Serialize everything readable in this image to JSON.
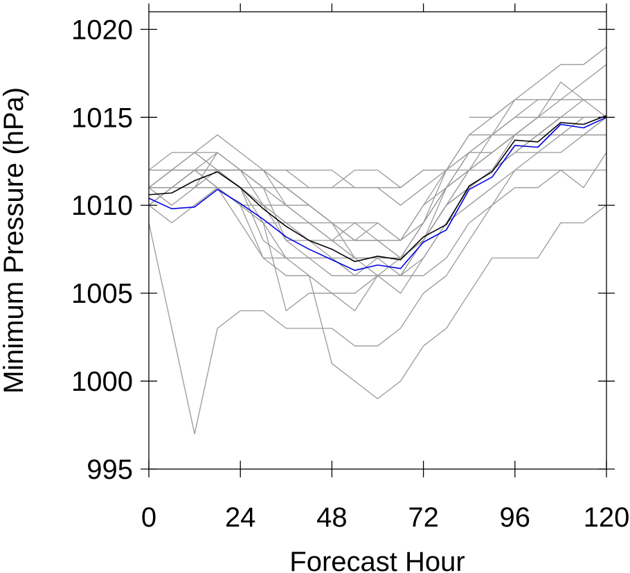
{
  "chart_data": {
    "type": "line",
    "title": "",
    "xlabel": "Forecast Hour",
    "ylabel": "Minimum Pressure (hPa)",
    "xlim": [
      0,
      120
    ],
    "ylim": [
      995,
      1021
    ],
    "xticks": [
      0,
      24,
      48,
      72,
      96,
      120
    ],
    "yticks": [
      995,
      1000,
      1005,
      1010,
      1015,
      1020
    ],
    "xtick_labels": [
      "0",
      "24",
      "48",
      "72",
      "96",
      "120"
    ],
    "ytick_labels": [
      "995",
      "1000",
      "1005",
      "1010",
      "1015",
      "1020"
    ],
    "grid": false,
    "legend": "none",
    "colors": {
      "members": "#999999",
      "mean": "#000000",
      "control": "#0000e0"
    },
    "x": [
      0,
      6,
      12,
      18,
      24,
      30,
      36,
      42,
      48,
      54,
      60,
      66,
      72,
      78,
      84,
      90,
      96,
      102,
      108,
      114,
      120
    ],
    "series": [
      {
        "role": "member",
        "values": [
          1009,
          1003,
          997,
          1003,
          1004,
          1004,
          1003,
          1003,
          1003,
          1002,
          1002,
          1003,
          1005,
          1006,
          1008,
          1010,
          1012,
          1013,
          1013,
          1014,
          1015
        ]
      },
      {
        "role": "member",
        "values": [
          1011,
          1012,
          1012,
          1011,
          1010,
          1007,
          1006,
          1006,
          1001,
          1000,
          999,
          1000,
          1002,
          1003,
          1005,
          1007,
          1007,
          1007,
          1009,
          1009,
          1010
        ]
      },
      {
        "role": "member",
        "values": [
          1010,
          1011,
          1012,
          1012,
          1011,
          1009,
          1004,
          1005,
          1005,
          1004,
          1006,
          1005,
          1007,
          1009,
          1010,
          1011,
          1012,
          1012,
          1012,
          1011,
          1013
        ]
      },
      {
        "role": "member",
        "values": [
          1011,
          1010,
          1011,
          1012,
          1011,
          1008,
          1007,
          1007,
          1007,
          1006,
          1006,
          1006,
          1006,
          1007,
          1009,
          1010,
          1011,
          1011,
          1012,
          1012,
          1012
        ]
      },
      {
        "role": "member",
        "values": [
          1010,
          1011,
          1011,
          1013,
          1012,
          1010,
          1008,
          1008,
          1008,
          1007,
          1007,
          1007,
          1008,
          1010,
          1011,
          1012,
          1013,
          1013,
          1014,
          1015,
          1015
        ]
      },
      {
        "role": "member",
        "values": [
          1011,
          1011,
          1012,
          1012,
          1011,
          1010,
          1009,
          1009,
          1008,
          1009,
          1008,
          1008,
          1009,
          1011,
          1012,
          1013,
          1014,
          1015,
          1015,
          1016,
          1016
        ]
      },
      {
        "role": "member",
        "values": [
          1012,
          1012,
          1013,
          1012,
          1012,
          1012,
          1012,
          1011,
          1011,
          1012,
          1012,
          1011,
          1012,
          1012,
          1013,
          1014,
          1016,
          1016,
          1016,
          1016,
          1016
        ]
      },
      {
        "role": "member",
        "values": [
          1012,
          1013,
          1013,
          1013,
          1012,
          1011,
          1011,
          1010,
          1009,
          1008,
          1009,
          1008,
          1010,
          1012,
          1014,
          1014,
          1015,
          1015,
          1017,
          1016,
          1015
        ]
      },
      {
        "role": "member",
        "values": [
          1011,
          1012,
          1013,
          1014,
          1013,
          1012,
          1010,
          1010,
          1009,
          1007,
          1006,
          1006,
          1008,
          1011,
          1013,
          1014,
          1015,
          1016,
          1016,
          1017,
          1018
        ]
      },
      {
        "role": "member",
        "values": [
          1010,
          1009,
          1010,
          1011,
          1010,
          1009,
          1007,
          1006,
          1005,
          1005,
          1006,
          1007,
          1009,
          1012,
          1014,
          1015,
          1016,
          1017,
          1018,
          1018,
          1019
        ]
      },
      {
        "role": "member",
        "values": [
          1011,
          1011,
          1012,
          1011,
          1010,
          1009,
          1009,
          1008,
          1007,
          1007,
          1007,
          1007,
          1008,
          1010,
          1012,
          1013,
          1014,
          1014,
          1015,
          1015,
          1015
        ]
      },
      {
        "role": "member",
        "values": [
          1010,
          1011,
          1012,
          1011,
          1009,
          1007,
          1007,
          1007,
          1006,
          1006,
          1006,
          1006,
          1007,
          1009,
          1011,
          1012,
          1013,
          1014,
          1014,
          1014,
          1014
        ]
      },
      {
        "role": "member",
        "values": [
          1012,
          1012,
          1012,
          1012,
          1012,
          1011,
          1008,
          1007,
          1007,
          1006,
          1007,
          1007,
          1009,
          1011,
          1012,
          1013,
          1014,
          1014,
          1015,
          1015,
          1015
        ]
      },
      {
        "role": "member",
        "values": [
          1011,
          1011,
          1011,
          1011,
          1011,
          1011,
          1011,
          1010,
          1009,
          1008,
          1008,
          1007,
          1008,
          1010,
          1012,
          1012,
          1013,
          1014,
          1015,
          1015,
          1015
        ]
      },
      {
        "role": "member",
        "values": [
          1011,
          1011,
          1012,
          1012,
          1012,
          1011,
          1010,
          1009,
          1008,
          1007,
          1007,
          1006,
          1008,
          1010,
          1011,
          1012,
          1013,
          1014,
          1014,
          1014,
          1014
        ]
      },
      {
        "role": "member",
        "values": [
          1011,
          1011,
          1011,
          1011,
          1010,
          1010,
          1010,
          1009,
          1008,
          1008,
          1008,
          1007,
          1008,
          1010,
          1011,
          1012,
          1014,
          1014,
          1014,
          1014,
          1015
        ]
      },
      {
        "role": "member",
        "values": [
          1011,
          1012,
          1012,
          1012,
          1012,
          1012,
          1011,
          1011,
          1011,
          1011,
          1011,
          1010,
          1011,
          1012,
          1012,
          1013,
          1014,
          1015,
          1015,
          1015,
          1015
        ]
      },
      {
        "role": "member",
        "values": [
          1011,
          1012,
          1013,
          1012,
          1012,
          1012,
          1011,
          1010,
          1009,
          1009,
          1009,
          1008,
          1010,
          1011,
          1012,
          1014,
          1014,
          1015,
          1016,
          1016,
          1016
        ]
      },
      {
        "role": "member",
        "values": [
          1010,
          1011,
          1012,
          1012,
          1011,
          1010,
          1009,
          1009,
          1009,
          1008,
          1008,
          1008,
          1009,
          1011,
          1013,
          1013,
          1014,
          1014,
          1015,
          1015,
          1015
        ]
      },
      {
        "role": "member",
        "values": [
          1011,
          1011,
          1012,
          1013,
          1012,
          1012,
          1012,
          1012,
          1012,
          1011,
          1011,
          1011,
          1012,
          1012,
          1013,
          1013,
          1014,
          1015,
          1015,
          1015,
          1015
        ]
      },
      {
        "role": "member",
        "values": [
          null,
          null,
          null,
          null,
          null,
          null,
          null,
          null,
          null,
          null,
          null,
          null,
          null,
          null,
          1015,
          1015,
          1016,
          1016,
          1016,
          1016,
          1016
        ]
      },
      {
        "role": "mean",
        "values": [
          1010.6,
          1010.7,
          1011.4,
          1011.9,
          1011.0,
          1009.8,
          1008.8,
          1008.0,
          1007.5,
          1006.8,
          1007.1,
          1006.9,
          1008.2,
          1008.9,
          1011.1,
          1011.9,
          1013.7,
          1013.6,
          1014.7,
          1014.6,
          1015.1
        ]
      },
      {
        "role": "control",
        "values": [
          1010.4,
          1009.8,
          1009.9,
          1010.9,
          1010.1,
          1009.2,
          1008.2,
          1007.5,
          1006.9,
          1006.3,
          1006.6,
          1006.4,
          1007.9,
          1008.6,
          1010.9,
          1011.6,
          1013.4,
          1013.3,
          1014.6,
          1014.4,
          1015.0
        ]
      }
    ]
  }
}
